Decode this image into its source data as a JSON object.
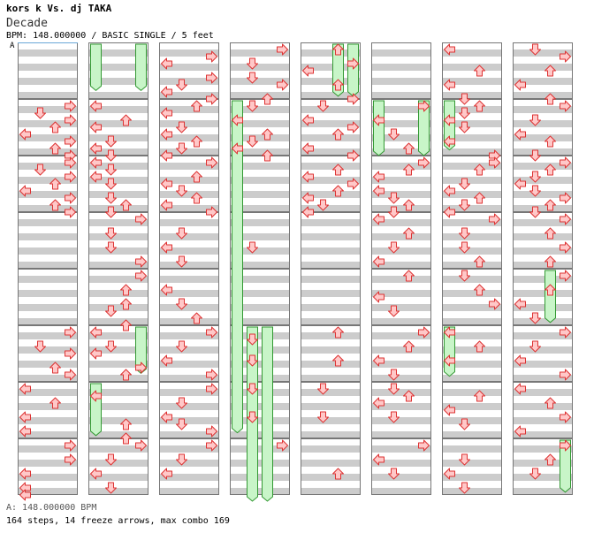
{
  "header": {
    "artist": "kors k Vs. dj TAKA",
    "title": "Decade",
    "meta": "BPM: 148.000000 / BASIC SINGLE / 5 feet"
  },
  "bpm_marker": "A",
  "footer": {
    "legend": "A: 148.000000 BPM",
    "stats": "164 steps, 14 freeze arrows, max combo 169"
  },
  "colors": {
    "stripe": "#cccccc",
    "measure_border": "#777777",
    "arrow_fill": "#ffc8c8",
    "arrow_stroke": "#dd3333",
    "freeze_fill": "#c8f5c8",
    "freeze_stroke": "#339933"
  },
  "columns_count": 8,
  "measures_per_column": 8,
  "lane_order": [
    "left",
    "down",
    "up",
    "right"
  ],
  "notes": [
    [
      [
        1,
        0,
        "right"
      ],
      [
        1,
        0.125,
        "down"
      ],
      [
        1,
        0.25,
        "right"
      ],
      [
        1,
        0.375,
        "up"
      ],
      [
        1,
        0.5,
        "left"
      ],
      [
        1,
        0.625,
        "right"
      ],
      [
        1,
        0.75,
        "up"
      ],
      [
        1,
        0.875,
        "right"
      ],
      [
        2,
        0,
        "right"
      ],
      [
        2,
        0.125,
        "down"
      ],
      [
        2,
        0.25,
        "right"
      ],
      [
        2,
        0.375,
        "up"
      ],
      [
        2,
        0.5,
        "left"
      ],
      [
        2,
        0.625,
        "right"
      ],
      [
        2,
        0.75,
        "up"
      ],
      [
        2,
        0.875,
        "right"
      ]
    ],
    [
      [
        1,
        0,
        "left"
      ],
      [
        1,
        0.25,
        "up"
      ],
      [
        1,
        0.375,
        "left"
      ],
      [
        1,
        0.625,
        "down"
      ],
      [
        1,
        0.75,
        "left"
      ],
      [
        1,
        0.875,
        "down"
      ],
      [
        2,
        0,
        "left"
      ],
      [
        2,
        0.125,
        "down"
      ],
      [
        2,
        0.25,
        "left"
      ],
      [
        2,
        0.375,
        "down"
      ],
      [
        2,
        0.625,
        "down"
      ],
      [
        2,
        0.75,
        "up"
      ],
      [
        2,
        0.875,
        "down"
      ]
    ],
    [
      [
        0,
        0.125,
        "right"
      ],
      [
        0,
        0.25,
        "left"
      ],
      [
        0,
        0.5,
        "right"
      ],
      [
        0,
        0.625,
        "down"
      ],
      [
        0,
        0.75,
        "left"
      ],
      [
        0,
        0.875,
        "right"
      ],
      [
        1,
        0,
        "up"
      ],
      [
        1,
        0.125,
        "left"
      ],
      [
        1,
        0.375,
        "down"
      ],
      [
        1,
        0.5,
        "left"
      ],
      [
        1,
        0.625,
        "up"
      ],
      [
        1,
        0.75,
        "down"
      ],
      [
        1,
        0.875,
        "left"
      ],
      [
        2,
        0,
        "right"
      ],
      [
        2,
        0.25,
        "up"
      ],
      [
        2,
        0.375,
        "left"
      ],
      [
        2,
        0.5,
        "down"
      ],
      [
        2,
        0.625,
        "up"
      ],
      [
        2,
        0.75,
        "left"
      ],
      [
        2,
        0.875,
        "right"
      ]
    ],
    [
      [
        0,
        0,
        "right"
      ],
      [
        0,
        0.25,
        "down"
      ],
      [
        0,
        0.5,
        "down"
      ],
      [
        0,
        0.625,
        "right"
      ],
      [
        0,
        0.875,
        "up"
      ],
      [
        1,
        0,
        "down"
      ],
      [
        1,
        0.25,
        "left"
      ],
      [
        1,
        0.5,
        "up"
      ],
      [
        1,
        0.625,
        "down"
      ],
      [
        1,
        0.75,
        "left"
      ],
      [
        1,
        0.875,
        "up"
      ]
    ],
    [
      [
        0,
        0,
        "up"
      ],
      [
        0,
        0.25,
        "right"
      ],
      [
        0,
        0.375,
        "left"
      ],
      [
        0,
        0.625,
        "up"
      ],
      [
        0,
        0.875,
        "right"
      ],
      [
        1,
        0,
        "down"
      ],
      [
        1,
        0.25,
        "left"
      ],
      [
        1,
        0.375,
        "right"
      ],
      [
        1,
        0.5,
        "up"
      ],
      [
        1,
        0.75,
        "left"
      ],
      [
        1,
        0.875,
        "right"
      ],
      [
        2,
        0.125,
        "up"
      ],
      [
        2,
        0.25,
        "left"
      ],
      [
        2,
        0.375,
        "right"
      ],
      [
        2,
        0.5,
        "up"
      ],
      [
        2,
        0.625,
        "left"
      ],
      [
        2,
        0.75,
        "down"
      ],
      [
        2,
        0.875,
        "left"
      ]
    ],
    [
      [
        1,
        0,
        "right"
      ],
      [
        1,
        0.25,
        "left"
      ],
      [
        1,
        0.5,
        "down"
      ],
      [
        1,
        0.75,
        "up"
      ],
      [
        2,
        0,
        "right"
      ],
      [
        2,
        0.125,
        "up"
      ],
      [
        2,
        0.25,
        "left"
      ],
      [
        2,
        0.5,
        "left"
      ],
      [
        2,
        0.625,
        "down"
      ],
      [
        2,
        0.75,
        "up"
      ],
      [
        2,
        0.875,
        "down"
      ]
    ],
    [
      [
        0,
        0,
        "left"
      ],
      [
        0,
        0.375,
        "up"
      ],
      [
        0,
        0.625,
        "left"
      ],
      [
        0,
        0.875,
        "down"
      ],
      [
        1,
        0,
        "up"
      ],
      [
        1,
        0.125,
        "down"
      ],
      [
        1,
        0.25,
        "left"
      ],
      [
        1,
        0.375,
        "down"
      ],
      [
        1,
        0.625,
        "left"
      ],
      [
        1,
        0.875,
        "right"
      ],
      [
        2,
        0,
        "right"
      ],
      [
        2,
        0.125,
        "up"
      ],
      [
        2,
        0.375,
        "down"
      ],
      [
        2,
        0.5,
        "left"
      ],
      [
        2,
        0.625,
        "up"
      ],
      [
        2,
        0.75,
        "down"
      ],
      [
        2,
        0.875,
        "left"
      ]
    ],
    [
      [
        0,
        0,
        "down"
      ],
      [
        0,
        0.125,
        "right"
      ],
      [
        0,
        0.375,
        "up"
      ],
      [
        0,
        0.625,
        "left"
      ],
      [
        0,
        0.875,
        "up"
      ],
      [
        1,
        0,
        "right"
      ],
      [
        1,
        0.25,
        "down"
      ],
      [
        1,
        0.5,
        "left"
      ],
      [
        1,
        0.625,
        "up"
      ],
      [
        1,
        0.875,
        "down"
      ],
      [
        2,
        0,
        "right"
      ],
      [
        2,
        0.125,
        "up"
      ],
      [
        2,
        0.25,
        "down"
      ],
      [
        2,
        0.375,
        "left"
      ],
      [
        2,
        0.5,
        "down"
      ],
      [
        2,
        0.625,
        "right"
      ],
      [
        2,
        0.75,
        "up"
      ],
      [
        2,
        0.875,
        "down"
      ]
    ]
  ],
  "freezes": [
    [],
    [
      [
        "left",
        0,
        0.85
      ],
      [
        "right",
        0,
        0.85
      ]
    ],
    [],
    [
      [
        "left",
        1,
        6.9
      ],
      [
        "down",
        5,
        9.0
      ],
      [
        "up",
        5,
        9.0
      ]
    ],
    [
      [
        "up",
        0,
        0.95
      ],
      [
        "right",
        0,
        0.95
      ]
    ],
    [
      [
        "left",
        1,
        2.0
      ],
      [
        "right",
        1,
        2.0
      ]
    ],
    [
      [
        "left",
        1,
        1.9
      ]
    ],
    []
  ],
  "notes_lower": [
    [
      [
        5,
        0,
        "right"
      ],
      [
        5,
        0.25,
        "down"
      ],
      [
        5,
        0.375,
        "right"
      ],
      [
        5,
        0.625,
        "up"
      ],
      [
        5,
        0.75,
        "right"
      ],
      [
        6,
        0,
        "left"
      ],
      [
        6,
        0.25,
        "up"
      ],
      [
        6,
        0.5,
        "left"
      ],
      [
        6,
        0.75,
        "left"
      ],
      [
        7,
        0,
        "right"
      ],
      [
        7,
        0.25,
        "right"
      ],
      [
        7,
        0.5,
        "left"
      ],
      [
        7,
        0.75,
        "left"
      ],
      [
        7,
        0.875,
        "left"
      ]
    ],
    [
      [
        3,
        0,
        "right"
      ],
      [
        3,
        0.25,
        "down"
      ],
      [
        3,
        0.5,
        "down"
      ],
      [
        3,
        0.75,
        "right"
      ],
      [
        4,
        0,
        "right"
      ],
      [
        4,
        0.25,
        "up"
      ],
      [
        4,
        0.5,
        "up"
      ],
      [
        4,
        0.625,
        "down"
      ],
      [
        4,
        0.875,
        "up"
      ],
      [
        5,
        0,
        "left"
      ],
      [
        5,
        0.25,
        "down"
      ],
      [
        5,
        0.375,
        "left"
      ],
      [
        5,
        0.625,
        "right"
      ],
      [
        5,
        0.75,
        "up"
      ],
      [
        6,
        0.125,
        "left"
      ],
      [
        6,
        0.625,
        "up"
      ],
      [
        6,
        0.875,
        "up"
      ],
      [
        7,
        0,
        "right"
      ],
      [
        7,
        0.25,
        "down"
      ],
      [
        7,
        0.5,
        "left"
      ],
      [
        7,
        0.75,
        "down"
      ]
    ],
    [
      [
        3,
        0.25,
        "down"
      ],
      [
        3,
        0.5,
        "left"
      ],
      [
        3,
        0.75,
        "down"
      ],
      [
        4,
        0.25,
        "left"
      ],
      [
        4,
        0.5,
        "down"
      ],
      [
        4,
        0.75,
        "up"
      ],
      [
        5,
        0,
        "right"
      ],
      [
        5,
        0.25,
        "down"
      ],
      [
        5,
        0.5,
        "left"
      ],
      [
        5,
        0.75,
        "right"
      ],
      [
        6,
        0,
        "right"
      ],
      [
        6,
        0.25,
        "down"
      ],
      [
        6,
        0.5,
        "left"
      ],
      [
        6,
        0.625,
        "down"
      ],
      [
        6,
        0.75,
        "right"
      ],
      [
        7,
        0,
        "right"
      ],
      [
        7,
        0.25,
        "down"
      ],
      [
        7,
        0.5,
        "left"
      ]
    ],
    [
      [
        3,
        0.5,
        "down"
      ],
      [
        5,
        0.125,
        "down"
      ],
      [
        5,
        0.5,
        "down"
      ],
      [
        6,
        0,
        "down"
      ],
      [
        6,
        0.5,
        "down"
      ],
      [
        7,
        0,
        "right"
      ]
    ],
    [
      [
        5,
        0,
        "up"
      ],
      [
        5,
        0.5,
        "up"
      ],
      [
        6,
        0,
        "down"
      ],
      [
        6,
        0.5,
        "down"
      ],
      [
        7,
        0.5,
        "up"
      ]
    ],
    [
      [
        3,
        0,
        "left"
      ],
      [
        3,
        0.25,
        "up"
      ],
      [
        3,
        0.5,
        "down"
      ],
      [
        3,
        0.75,
        "left"
      ],
      [
        4,
        0,
        "up"
      ],
      [
        4,
        0.375,
        "left"
      ],
      [
        4,
        0.625,
        "down"
      ],
      [
        5,
        0,
        "right"
      ],
      [
        5,
        0.25,
        "up"
      ],
      [
        5,
        0.5,
        "left"
      ],
      [
        5,
        0.75,
        "down"
      ],
      [
        6,
        0,
        "down"
      ],
      [
        6,
        0.125,
        "up"
      ],
      [
        6,
        0.25,
        "left"
      ],
      [
        6,
        0.5,
        "down"
      ],
      [
        7,
        0,
        "right"
      ],
      [
        7,
        0.25,
        "left"
      ],
      [
        7,
        0.5,
        "down"
      ]
    ],
    [
      [
        3,
        0,
        "right"
      ],
      [
        3,
        0.25,
        "down"
      ],
      [
        3,
        0.5,
        "down"
      ],
      [
        3,
        0.75,
        "up"
      ],
      [
        4,
        0,
        "down"
      ],
      [
        4,
        0.25,
        "up"
      ],
      [
        4,
        0.5,
        "right"
      ],
      [
        5,
        0,
        "left"
      ],
      [
        5,
        0.25,
        "up"
      ],
      [
        5,
        0.5,
        "left"
      ],
      [
        6,
        0.125,
        "up"
      ],
      [
        6,
        0.375,
        "left"
      ],
      [
        6,
        0.625,
        "down"
      ],
      [
        7,
        0.25,
        "down"
      ],
      [
        7,
        0.5,
        "left"
      ],
      [
        7,
        0.75,
        "down"
      ]
    ],
    [
      [
        3,
        0,
        "right"
      ],
      [
        3,
        0.25,
        "up"
      ],
      [
        3,
        0.5,
        "right"
      ],
      [
        3,
        0.75,
        "up"
      ],
      [
        4,
        0,
        "right"
      ],
      [
        4,
        0.25,
        "up"
      ],
      [
        4,
        0.5,
        "left"
      ],
      [
        4,
        0.75,
        "down"
      ],
      [
        5,
        0,
        "right"
      ],
      [
        5,
        0.25,
        "down"
      ],
      [
        5,
        0.5,
        "left"
      ],
      [
        5,
        0.75,
        "right"
      ],
      [
        6,
        0,
        "left"
      ],
      [
        6,
        0.25,
        "up"
      ],
      [
        6,
        0.5,
        "right"
      ],
      [
        6,
        0.75,
        "left"
      ],
      [
        7,
        0,
        "right"
      ],
      [
        7,
        0.25,
        "up"
      ],
      [
        7,
        0.5,
        "down"
      ]
    ]
  ],
  "freezes_lower": [
    [],
    [
      [
        "right",
        5,
        5.85
      ],
      [
        "left",
        6,
        6.95
      ]
    ],
    [],
    [],
    [],
    [],
    [
      [
        "left",
        5,
        5.9
      ]
    ],
    [
      [
        "right",
        7,
        7.95
      ],
      [
        "up",
        4,
        4.95
      ]
    ]
  ]
}
